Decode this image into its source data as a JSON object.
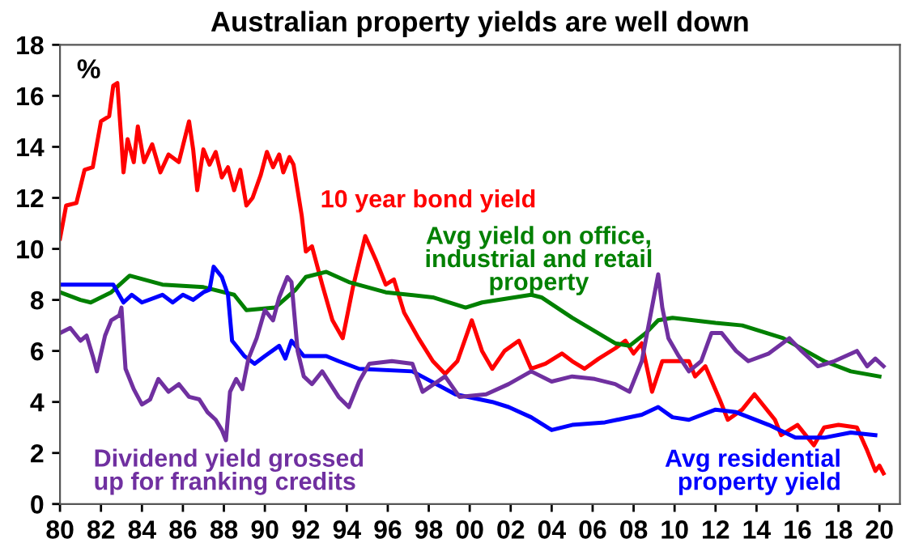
{
  "chart_data": {
    "type": "line",
    "title": "Australian property yields are well down",
    "ylabel": "%",
    "xlim": [
      1980,
      2021
    ],
    "xticks": [
      {
        "value": 1980,
        "label": "80"
      },
      {
        "value": 1982,
        "label": "82"
      },
      {
        "value": 1984,
        "label": "84"
      },
      {
        "value": 1986,
        "label": "86"
      },
      {
        "value": 1988,
        "label": "88"
      },
      {
        "value": 1990,
        "label": "90"
      },
      {
        "value": 1992,
        "label": "92"
      },
      {
        "value": 1994,
        "label": "94"
      },
      {
        "value": 1996,
        "label": "96"
      },
      {
        "value": 1998,
        "label": "98"
      },
      {
        "value": 2000,
        "label": "00"
      },
      {
        "value": 2002,
        "label": "02"
      },
      {
        "value": 2004,
        "label": "04"
      },
      {
        "value": 2006,
        "label": "06"
      },
      {
        "value": 2008,
        "label": "08"
      },
      {
        "value": 2010,
        "label": "10"
      },
      {
        "value": 2012,
        "label": "12"
      },
      {
        "value": 2014,
        "label": "14"
      },
      {
        "value": 2016,
        "label": "16"
      },
      {
        "value": 2018,
        "label": "18"
      },
      {
        "value": 2020,
        "label": "20"
      }
    ],
    "ylim": [
      0,
      18
    ],
    "yticks": [
      0,
      2,
      4,
      6,
      8,
      10,
      12,
      14,
      16,
      18
    ],
    "grid": false,
    "legend": false,
    "marker": "none",
    "line_style": "solid",
    "series": [
      {
        "name": "10 year bond yield",
        "color": "#ff0000",
        "x": [
          1980.0,
          1980.3,
          1980.8,
          1981.2,
          1981.6,
          1982.0,
          1982.4,
          1982.6,
          1982.8,
          1983.0,
          1983.1,
          1983.3,
          1983.6,
          1983.8,
          1984.1,
          1984.5,
          1984.9,
          1985.3,
          1985.8,
          1986.3,
          1986.5,
          1986.7,
          1987.0,
          1987.3,
          1987.6,
          1987.9,
          1988.2,
          1988.5,
          1988.8,
          1989.1,
          1989.4,
          1989.8,
          1990.1,
          1990.4,
          1990.7,
          1990.9,
          1991.2,
          1991.4,
          1991.8,
          1992.0,
          1992.3,
          1992.8,
          1993.3,
          1993.8,
          1994.3,
          1994.9,
          1995.4,
          1995.9,
          1996.3,
          1996.8,
          1997.5,
          1998.2,
          1998.8,
          1999.4,
          2000.1,
          2000.6,
          2001.1,
          2001.7,
          2002.4,
          2003.0,
          2003.7,
          2004.5,
          2005.0,
          2005.6,
          2006.3,
          2007.1,
          2007.6,
          2008.0,
          2008.4,
          2008.9,
          2009.4,
          2010.0,
          2010.7,
          2011.0,
          2011.5,
          2012.2,
          2012.6,
          2013.3,
          2013.9,
          2014.4,
          2014.9,
          2015.2,
          2016.0,
          2016.8,
          2017.3,
          2018.0,
          2018.9,
          2019.4,
          2019.8,
          2020.0,
          2020.2
        ],
        "values": [
          10.4,
          11.7,
          11.8,
          13.1,
          13.2,
          15.0,
          15.2,
          16.4,
          16.5,
          14.2,
          13.0,
          14.3,
          13.4,
          14.8,
          13.4,
          14.1,
          13.0,
          13.7,
          13.4,
          15.0,
          13.9,
          12.3,
          13.9,
          13.3,
          13.8,
          12.8,
          13.2,
          12.3,
          13.1,
          11.7,
          12.0,
          12.9,
          13.8,
          13.2,
          13.7,
          13.0,
          13.6,
          13.3,
          11.3,
          9.9,
          10.1,
          8.6,
          7.2,
          6.5,
          8.5,
          10.5,
          9.6,
          8.6,
          8.8,
          7.5,
          6.5,
          5.6,
          5.1,
          5.6,
          7.2,
          6.0,
          5.3,
          6.0,
          6.4,
          5.3,
          5.5,
          5.9,
          5.6,
          5.3,
          5.7,
          6.1,
          6.4,
          5.9,
          6.3,
          4.4,
          5.6,
          5.6,
          5.6,
          5.0,
          5.4,
          4.1,
          3.3,
          3.7,
          4.3,
          3.8,
          3.3,
          2.7,
          3.1,
          2.3,
          3.0,
          3.1,
          3.0,
          2.1,
          1.3,
          1.5,
          1.2
        ]
      },
      {
        "name": "Avg yield on office,\nindustrial and retail\nproperty",
        "color": "#008000",
        "x": [
          1980.0,
          1981.0,
          1981.5,
          1982.5,
          1983.4,
          1985.0,
          1987.0,
          1988.5,
          1989.1,
          1990.5,
          1991.5,
          1992.0,
          1993.0,
          1994.1,
          1995.9,
          1998.2,
          1999.8,
          2000.6,
          2003.0,
          2003.5,
          2005.0,
          2007.1,
          2007.8,
          2008.6,
          2009.2,
          2009.9,
          2012.0,
          2013.3,
          2015.3,
          2017.3,
          2018.6,
          2020.0
        ],
        "values": [
          8.3,
          8.0,
          7.9,
          8.3,
          8.95,
          8.6,
          8.5,
          8.2,
          7.6,
          7.7,
          8.4,
          8.9,
          9.1,
          8.7,
          8.3,
          8.1,
          7.7,
          7.9,
          8.2,
          8.1,
          7.3,
          6.3,
          6.2,
          6.7,
          7.2,
          7.3,
          7.1,
          7.0,
          6.5,
          5.6,
          5.2,
          5.0
        ]
      },
      {
        "name": "Avg residential\nproperty yield",
        "color": "#0000ff",
        "x": [
          1980.0,
          1982.6,
          1983.1,
          1983.5,
          1984.0,
          1985.0,
          1985.5,
          1986.0,
          1986.5,
          1987.0,
          1987.3,
          1987.5,
          1987.9,
          1988.2,
          1988.4,
          1989.0,
          1989.5,
          1990.0,
          1990.7,
          1991.0,
          1991.3,
          1991.9,
          1993.0,
          1993.6,
          1994.6,
          1997.2,
          1999.3,
          2001.1,
          2001.9,
          2003.0,
          2004.0,
          2005.0,
          2006.6,
          2008.4,
          2009.2,
          2009.9,
          2010.7,
          2012.0,
          2013.0,
          2014.6,
          2015.9,
          2017.3,
          2018.6,
          2019.8
        ],
        "values": [
          8.6,
          8.6,
          7.9,
          8.2,
          7.9,
          8.2,
          7.9,
          8.2,
          8.0,
          8.3,
          8.4,
          9.3,
          8.9,
          8.2,
          6.4,
          5.8,
          5.5,
          5.8,
          6.2,
          5.7,
          6.4,
          5.8,
          5.8,
          5.6,
          5.3,
          5.2,
          4.3,
          4.0,
          3.8,
          3.4,
          2.9,
          3.1,
          3.2,
          3.5,
          3.8,
          3.4,
          3.3,
          3.7,
          3.6,
          3.1,
          2.6,
          2.6,
          2.8,
          2.7
        ]
      },
      {
        "name": "Dividend yield grossed\nup for franking credits",
        "color": "#7030a0",
        "x": [
          1980.0,
          1980.5,
          1981.0,
          1981.3,
          1981.6,
          1981.8,
          1982.2,
          1982.5,
          1982.9,
          1983.0,
          1983.2,
          1983.6,
          1984.0,
          1984.4,
          1984.8,
          1985.3,
          1985.8,
          1986.3,
          1986.8,
          1987.2,
          1987.6,
          1987.9,
          1988.1,
          1988.3,
          1988.6,
          1988.9,
          1989.2,
          1989.6,
          1990.0,
          1990.4,
          1990.7,
          1991.1,
          1991.3,
          1991.6,
          1991.9,
          1992.3,
          1992.8,
          1993.6,
          1994.1,
          1994.6,
          1995.1,
          1996.2,
          1997.2,
          1997.7,
          1998.8,
          1999.5,
          2000.8,
          2001.9,
          2003.0,
          2004.0,
          2005.0,
          2006.1,
          2007.1,
          2007.8,
          2008.4,
          2008.8,
          2009.2,
          2009.4,
          2009.7,
          2010.2,
          2010.7,
          2011.3,
          2011.8,
          2012.3,
          2013.0,
          2013.6,
          2014.6,
          2015.6,
          2016.2,
          2017.0,
          2017.8,
          2018.9,
          2019.4,
          2019.8,
          2020.2
        ],
        "values": [
          6.7,
          6.9,
          6.4,
          6.6,
          5.8,
          5.2,
          6.6,
          7.2,
          7.4,
          7.7,
          5.3,
          4.5,
          3.9,
          4.1,
          4.9,
          4.4,
          4.7,
          4.2,
          4.1,
          3.6,
          3.3,
          2.9,
          2.5,
          4.4,
          4.9,
          4.5,
          5.7,
          6.5,
          7.6,
          7.2,
          8.1,
          8.9,
          8.7,
          6.0,
          5.0,
          4.7,
          5.2,
          4.2,
          3.8,
          4.8,
          5.5,
          5.6,
          5.5,
          4.4,
          5.0,
          4.2,
          4.3,
          4.7,
          5.2,
          4.8,
          5.0,
          4.9,
          4.7,
          4.4,
          5.6,
          7.3,
          9.0,
          7.7,
          6.5,
          5.8,
          5.2,
          5.6,
          6.7,
          6.7,
          6.0,
          5.6,
          5.9,
          6.5,
          6.0,
          5.4,
          5.6,
          6.0,
          5.4,
          5.7,
          5.4
        ]
      }
    ]
  }
}
